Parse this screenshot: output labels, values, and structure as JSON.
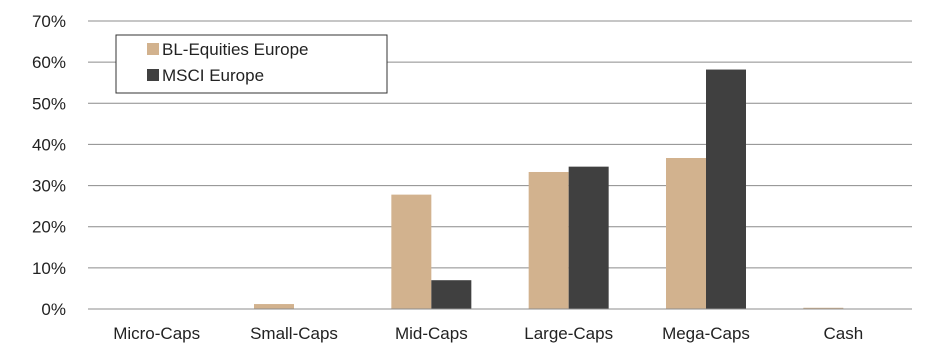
{
  "chart_data": {
    "type": "bar",
    "title": "",
    "xlabel": "",
    "ylabel": "",
    "categories": [
      "Micro-Caps",
      "Small-Caps",
      "Mid-Caps",
      "Large-Caps",
      "Mega-Caps",
      "Cash"
    ],
    "series": [
      {
        "name": "BL-Equities Europe",
        "color": "#d2b28e",
        "values": [
          0,
          1.2,
          27.8,
          33.3,
          36.7,
          0.3
        ]
      },
      {
        "name": "MSCI Europe",
        "color": "#404040",
        "values": [
          0,
          0,
          7.0,
          34.6,
          58.2,
          0
        ]
      }
    ],
    "ylim": [
      0,
      70
    ],
    "yticks": [
      0,
      10,
      20,
      30,
      40,
      50,
      60,
      70
    ],
    "ytick_labels": [
      "0%",
      "10%",
      "20%",
      "30%",
      "40%",
      "50%",
      "60%",
      "70%"
    ],
    "grid": true,
    "legend_position": "top-left"
  }
}
